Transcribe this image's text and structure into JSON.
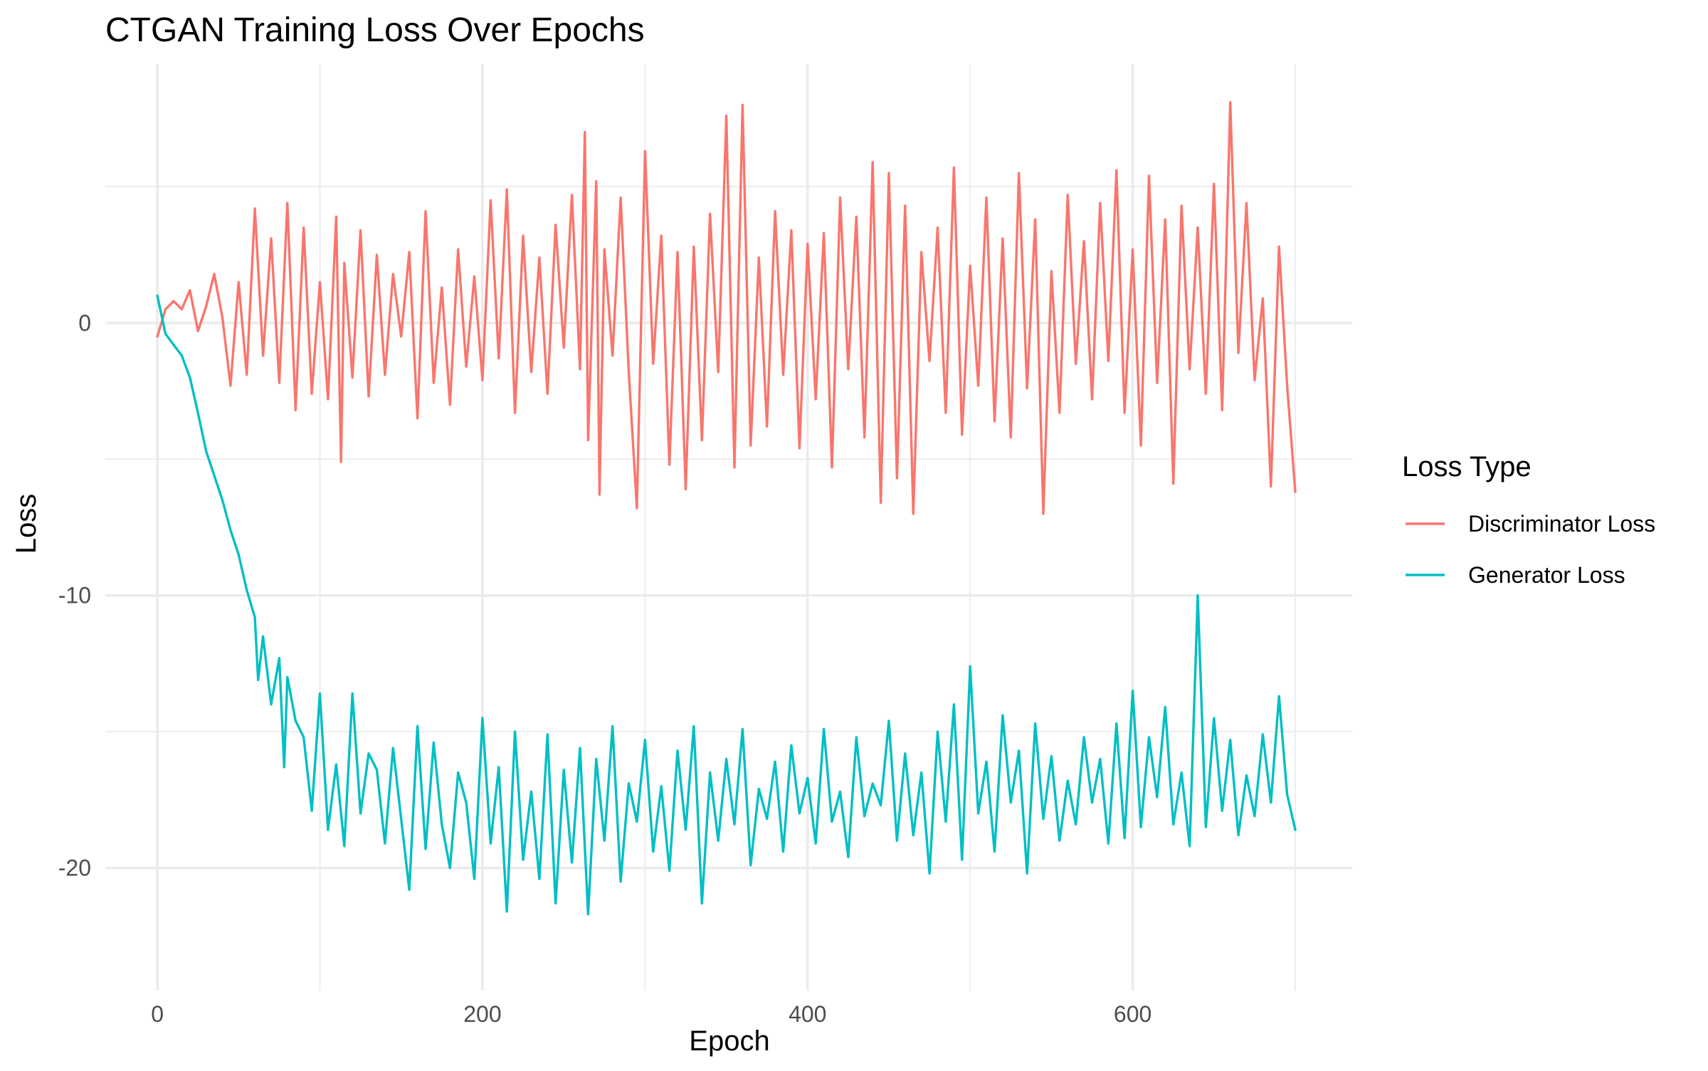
{
  "chart_data": {
    "type": "line",
    "title": "CTGAN Training Loss Over Epochs",
    "xlabel": "Epoch",
    "ylabel": "Loss",
    "xlim": [
      -32,
      735
    ],
    "ylim": [
      -24.5,
      9.5
    ],
    "x_ticks": [
      0,
      200,
      400,
      600
    ],
    "x_tick_labels": [
      "0",
      "200",
      "400",
      "600"
    ],
    "x_minor_ticks": [
      100,
      300,
      500,
      700
    ],
    "y_ticks": [
      -20,
      -10,
      0
    ],
    "y_tick_labels": [
      "-20",
      "-10",
      "0"
    ],
    "y_minor_ticks": [
      -15,
      -5,
      5
    ],
    "grid": true,
    "legend": {
      "title": "Loss Type",
      "position": "right",
      "entries": [
        "Discriminator Loss",
        "Generator Loss"
      ]
    },
    "series": [
      {
        "name": "Discriminator Loss",
        "color": "#F8766D",
        "x": [
          0,
          5,
          10,
          15,
          20,
          25,
          30,
          35,
          40,
          45,
          50,
          55,
          60,
          65,
          70,
          75,
          80,
          85,
          90,
          95,
          100,
          105,
          110,
          113,
          115,
          120,
          125,
          130,
          135,
          140,
          145,
          150,
          155,
          160,
          165,
          170,
          175,
          180,
          185,
          190,
          195,
          200,
          205,
          210,
          215,
          220,
          225,
          230,
          235,
          240,
          245,
          250,
          255,
          260,
          263,
          265,
          270,
          272,
          275,
          280,
          285,
          290,
          295,
          300,
          305,
          310,
          315,
          320,
          325,
          330,
          335,
          340,
          345,
          350,
          355,
          360,
          365,
          370,
          375,
          380,
          385,
          390,
          395,
          400,
          405,
          410,
          415,
          420,
          425,
          430,
          435,
          440,
          445,
          450,
          455,
          460,
          465,
          470,
          475,
          480,
          485,
          490,
          495,
          500,
          505,
          510,
          515,
          520,
          525,
          530,
          535,
          540,
          545,
          550,
          555,
          560,
          565,
          570,
          575,
          580,
          585,
          590,
          595,
          600,
          605,
          610,
          615,
          620,
          625,
          630,
          635,
          640,
          645,
          650,
          655,
          660,
          665,
          670,
          675,
          680,
          685,
          690,
          695,
          700
        ],
        "values": [
          -0.5,
          0.5,
          0.8,
          0.5,
          1.2,
          -0.3,
          0.6,
          1.8,
          0.2,
          -2.3,
          1.5,
          -1.9,
          4.2,
          -1.2,
          3.1,
          -2.2,
          4.4,
          -3.2,
          3.5,
          -2.6,
          1.5,
          -2.8,
          3.9,
          -5.1,
          2.2,
          -2.0,
          3.4,
          -2.7,
          2.5,
          -1.9,
          1.8,
          -0.5,
          2.6,
          -3.5,
          4.1,
          -2.2,
          1.3,
          -3.0,
          2.7,
          -1.6,
          1.7,
          -2.1,
          4.5,
          -1.3,
          4.9,
          -3.3,
          3.2,
          -1.8,
          2.4,
          -2.6,
          3.6,
          -0.9,
          4.7,
          -1.7,
          7.0,
          -4.3,
          5.2,
          -6.3,
          2.7,
          -1.2,
          4.6,
          -1.8,
          -6.8,
          6.3,
          -1.5,
          3.2,
          -5.2,
          2.6,
          -6.1,
          2.8,
          -4.3,
          4.0,
          -1.8,
          7.6,
          -5.3,
          8.0,
          -4.5,
          2.4,
          -3.8,
          4.1,
          -1.9,
          3.4,
          -4.6,
          2.9,
          -2.8,
          3.3,
          -5.3,
          4.6,
          -1.7,
          3.9,
          -4.2,
          5.9,
          -6.6,
          5.5,
          -5.7,
          4.3,
          -7.0,
          2.6,
          -1.4,
          3.5,
          -3.3,
          5.7,
          -4.1,
          2.1,
          -2.3,
          4.6,
          -3.6,
          3.1,
          -4.2,
          5.5,
          -2.4,
          3.8,
          -7.0,
          1.9,
          -3.3,
          4.7,
          -1.5,
          3.0,
          -2.8,
          4.4,
          -1.4,
          5.6,
          -3.3,
          2.7,
          -4.5,
          5.4,
          -2.2,
          3.8,
          -5.9,
          4.3,
          -1.7,
          3.5,
          -2.6,
          5.1,
          -3.2,
          8.1,
          -1.1,
          4.4,
          -2.1,
          0.9,
          -6.0,
          2.8,
          -2.3,
          -6.2
        ]
      },
      {
        "name": "Generator Loss",
        "color": "#00BFC4",
        "x": [
          0,
          5,
          10,
          15,
          20,
          25,
          30,
          35,
          40,
          45,
          50,
          55,
          60,
          62,
          65,
          70,
          75,
          78,
          80,
          85,
          90,
          95,
          100,
          105,
          110,
          115,
          120,
          125,
          130,
          135,
          140,
          145,
          150,
          155,
          160,
          165,
          170,
          175,
          180,
          185,
          190,
          195,
          200,
          205,
          210,
          215,
          220,
          225,
          230,
          235,
          240,
          245,
          250,
          255,
          260,
          265,
          270,
          275,
          280,
          285,
          290,
          295,
          300,
          305,
          310,
          315,
          320,
          325,
          330,
          335,
          340,
          345,
          350,
          355,
          360,
          365,
          370,
          375,
          380,
          385,
          390,
          395,
          400,
          405,
          410,
          415,
          420,
          425,
          430,
          435,
          440,
          445,
          450,
          455,
          460,
          465,
          470,
          475,
          480,
          485,
          490,
          495,
          500,
          505,
          510,
          515,
          520,
          525,
          530,
          535,
          540,
          545,
          550,
          555,
          560,
          565,
          570,
          575,
          580,
          585,
          590,
          595,
          600,
          605,
          610,
          615,
          620,
          625,
          630,
          635,
          640,
          645,
          650,
          655,
          660,
          665,
          670,
          675,
          680,
          685,
          690,
          695,
          700
        ],
        "values": [
          1.0,
          -0.4,
          -0.8,
          -1.2,
          -2.0,
          -3.3,
          -4.7,
          -5.6,
          -6.5,
          -7.6,
          -8.5,
          -9.8,
          -10.8,
          -13.1,
          -11.5,
          -14.0,
          -12.3,
          -16.3,
          -13.0,
          -14.6,
          -15.2,
          -17.9,
          -13.6,
          -18.6,
          -16.2,
          -19.2,
          -13.6,
          -18.0,
          -15.8,
          -16.4,
          -19.1,
          -15.6,
          -18.2,
          -20.8,
          -14.8,
          -19.3,
          -15.4,
          -18.4,
          -20.0,
          -16.5,
          -17.6,
          -20.4,
          -14.5,
          -19.1,
          -16.3,
          -21.6,
          -15.0,
          -19.7,
          -17.2,
          -20.4,
          -15.1,
          -21.3,
          -16.4,
          -19.8,
          -15.6,
          -21.7,
          -16.0,
          -19.0,
          -14.8,
          -20.5,
          -16.9,
          -18.3,
          -15.3,
          -19.4,
          -17.0,
          -20.1,
          -15.7,
          -18.6,
          -14.8,
          -21.3,
          -16.5,
          -19.0,
          -16.0,
          -18.4,
          -14.9,
          -19.9,
          -17.1,
          -18.2,
          -16.1,
          -19.4,
          -15.5,
          -18.0,
          -16.7,
          -19.1,
          -14.9,
          -18.3,
          -17.2,
          -19.6,
          -15.2,
          -18.1,
          -16.9,
          -17.7,
          -14.6,
          -19.0,
          -15.8,
          -18.8,
          -16.5,
          -20.2,
          -15.0,
          -18.3,
          -14.0,
          -19.7,
          -12.6,
          -18.0,
          -16.1,
          -19.4,
          -14.4,
          -17.6,
          -15.7,
          -20.2,
          -14.7,
          -18.2,
          -15.9,
          -19.0,
          -16.8,
          -18.4,
          -15.2,
          -17.6,
          -16.0,
          -19.1,
          -14.7,
          -18.9,
          -13.5,
          -18.5,
          -15.2,
          -17.4,
          -14.1,
          -18.4,
          -16.5,
          -19.2,
          -10.0,
          -18.5,
          -14.5,
          -17.9,
          -15.3,
          -18.8,
          -16.6,
          -18.1,
          -15.1,
          -17.6,
          -13.7,
          -17.3,
          -18.6
        ]
      }
    ]
  }
}
